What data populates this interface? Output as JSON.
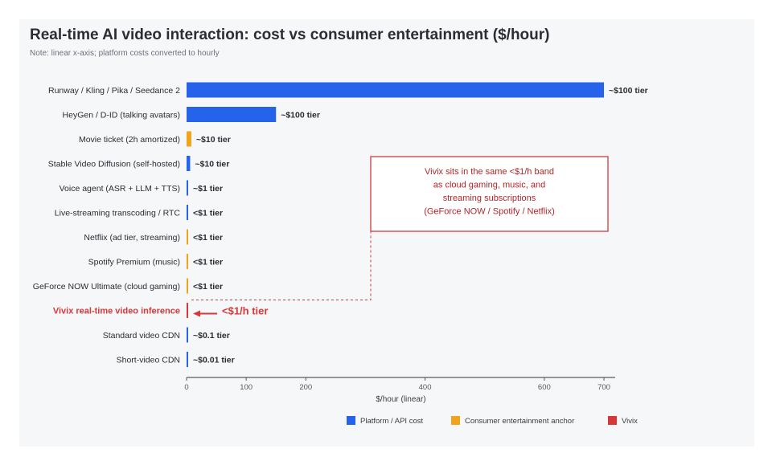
{
  "title": "Real-time AI video interaction: cost vs consumer entertainment ($/hour)",
  "subtitle": "Note: linear x-axis; platform costs converted to hourly",
  "colors": {
    "platform": "#2563eb",
    "consumer": "#f0a31b",
    "vivix": "#d73838",
    "axis": "#55595f",
    "text": "#2a2d34"
  },
  "annotation": {
    "text_lines": [
      "Vivix sits in the same <$1/h band",
      "as cloud gaming, music, and",
      "streaming subscriptions",
      "(GeForce NOW / Spotify / Netflix)"
    ],
    "arrow_label": "<$1/h tier"
  },
  "chart_data": {
    "type": "bar",
    "orientation": "horizontal",
    "xlabel": "$/hour (linear)",
    "xlim": [
      0,
      720
    ],
    "xticks": [
      0,
      100,
      200,
      400,
      600,
      700
    ],
    "grid": false,
    "legend_position": "bottom",
    "legend": [
      {
        "label": "Platform / API cost",
        "group": "platform"
      },
      {
        "label": "Consumer entertainment anchor",
        "group": "consumer"
      },
      {
        "label": "Vivix",
        "group": "vivix"
      }
    ],
    "bars": [
      {
        "category": "Runway / Kling / Pika / Seedance 2",
        "value": 700,
        "group": "platform",
        "label": "~$100 tier"
      },
      {
        "category": "HeyGen / D-ID (talking avatars)",
        "value": 150,
        "group": "platform",
        "label": "~$100 tier"
      },
      {
        "category": "Movie ticket (2h amortized)",
        "value": 8,
        "group": "consumer",
        "label": "~$10 tier"
      },
      {
        "category": "Stable Video Diffusion (self-hosted)",
        "value": 6,
        "group": "platform",
        "label": "~$10 tier"
      },
      {
        "category": "Voice agent (ASR + LLM + TTS)",
        "value": 2,
        "group": "platform",
        "label": "~$1 tier"
      },
      {
        "category": "Live-streaming transcoding / RTC",
        "value": 1,
        "group": "platform",
        "label": "<$1 tier"
      },
      {
        "category": "Netflix (ad tier, streaming)",
        "value": 1,
        "group": "consumer",
        "label": "<$1 tier"
      },
      {
        "category": "Spotify Premium (music)",
        "value": 1,
        "group": "consumer",
        "label": "<$1 tier"
      },
      {
        "category": "GeForce NOW Ultimate (cloud gaming)",
        "value": 1,
        "group": "consumer",
        "label": "<$1 tier"
      },
      {
        "category": "Vivix real-time video inference",
        "value": 0.8,
        "group": "vivix",
        "label": ""
      },
      {
        "category": "Standard video CDN",
        "value": 0.5,
        "group": "platform",
        "label": "~$0.1 tier"
      },
      {
        "category": "Short-video CDN",
        "value": 0.3,
        "group": "platform",
        "label": "~$0.01 tier"
      }
    ]
  }
}
